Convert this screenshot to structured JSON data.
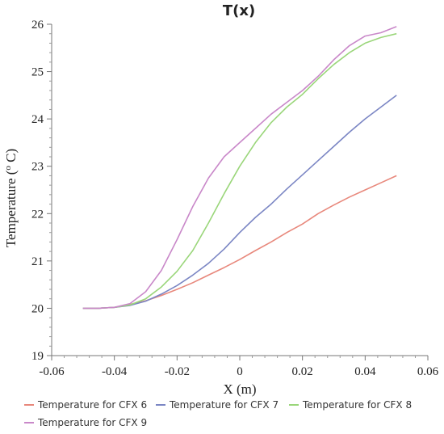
{
  "chart_data": {
    "type": "line",
    "title": "T(x)",
    "xlabel": "X (m)",
    "ylabel": "Temperature (o C)",
    "ylabel_parts": {
      "prefix": "Temperature (",
      "superscript": "o",
      "suffix": " C)"
    },
    "xlim": [
      -0.06,
      0.06
    ],
    "ylim": [
      19,
      26
    ],
    "x_ticks": [
      -0.06,
      -0.04,
      -0.02,
      0,
      0.02,
      0.04,
      0.06
    ],
    "x_tick_labels": [
      "-0.06",
      "-0.04",
      "-0.02",
      "0",
      "0.02",
      "0.04",
      "0.06"
    ],
    "y_ticks": [
      19,
      20,
      21,
      22,
      23,
      24,
      25,
      26
    ],
    "y_tick_labels": [
      "19",
      "20",
      "21",
      "22",
      "23",
      "24",
      "25",
      "26"
    ],
    "grid": false,
    "legend_position": "bottom",
    "series": [
      {
        "name": "Temperature for CFX 6",
        "color": "#e8887c",
        "x": [
          -0.05,
          -0.045,
          -0.04,
          -0.035,
          -0.03,
          -0.025,
          -0.02,
          -0.015,
          -0.01,
          -0.005,
          0,
          0.005,
          0.01,
          0.015,
          0.02,
          0.025,
          0.03,
          0.035,
          0.04,
          0.045,
          0.05
        ],
        "y": [
          20.0,
          20.0,
          20.02,
          20.08,
          20.16,
          20.27,
          20.4,
          20.54,
          20.7,
          20.86,
          21.03,
          21.22,
          21.4,
          21.6,
          21.78,
          22.0,
          22.18,
          22.35,
          22.5,
          22.65,
          22.8
        ]
      },
      {
        "name": "Temperature for CFX 7",
        "color": "#7b86c4",
        "x": [
          -0.05,
          -0.045,
          -0.04,
          -0.035,
          -0.03,
          -0.025,
          -0.02,
          -0.015,
          -0.01,
          -0.005,
          0,
          0.005,
          0.01,
          0.015,
          0.02,
          0.025,
          0.03,
          0.035,
          0.04,
          0.045,
          0.05
        ],
        "y": [
          20.0,
          20.0,
          20.02,
          20.06,
          20.15,
          20.3,
          20.48,
          20.7,
          20.95,
          21.25,
          21.6,
          21.92,
          22.2,
          22.52,
          22.82,
          23.12,
          23.42,
          23.72,
          24.0,
          24.25,
          24.5
        ]
      },
      {
        "name": "Temperature for CFX 8",
        "color": "#9ad67a",
        "x": [
          -0.05,
          -0.045,
          -0.04,
          -0.035,
          -0.03,
          -0.025,
          -0.02,
          -0.015,
          -0.01,
          -0.005,
          0,
          0.005,
          0.01,
          0.015,
          0.02,
          0.025,
          0.03,
          0.035,
          0.04,
          0.045,
          0.05
        ],
        "y": [
          20.0,
          20.0,
          20.02,
          20.07,
          20.2,
          20.45,
          20.78,
          21.22,
          21.8,
          22.42,
          23.0,
          23.5,
          23.92,
          24.25,
          24.52,
          24.85,
          25.15,
          25.4,
          25.6,
          25.72,
          25.8
        ]
      },
      {
        "name": "Temperature for CFX 9",
        "color": "#c988c9",
        "x": [
          -0.05,
          -0.045,
          -0.04,
          -0.035,
          -0.03,
          -0.025,
          -0.02,
          -0.015,
          -0.01,
          -0.005,
          0,
          0.005,
          0.01,
          0.015,
          0.02,
          0.025,
          0.03,
          0.035,
          0.04,
          0.045,
          0.05
        ],
        "y": [
          20.0,
          20.0,
          20.02,
          20.1,
          20.35,
          20.8,
          21.45,
          22.15,
          22.75,
          23.2,
          23.5,
          23.8,
          24.1,
          24.35,
          24.6,
          24.9,
          25.25,
          25.55,
          25.75,
          25.82,
          25.95
        ]
      }
    ]
  }
}
